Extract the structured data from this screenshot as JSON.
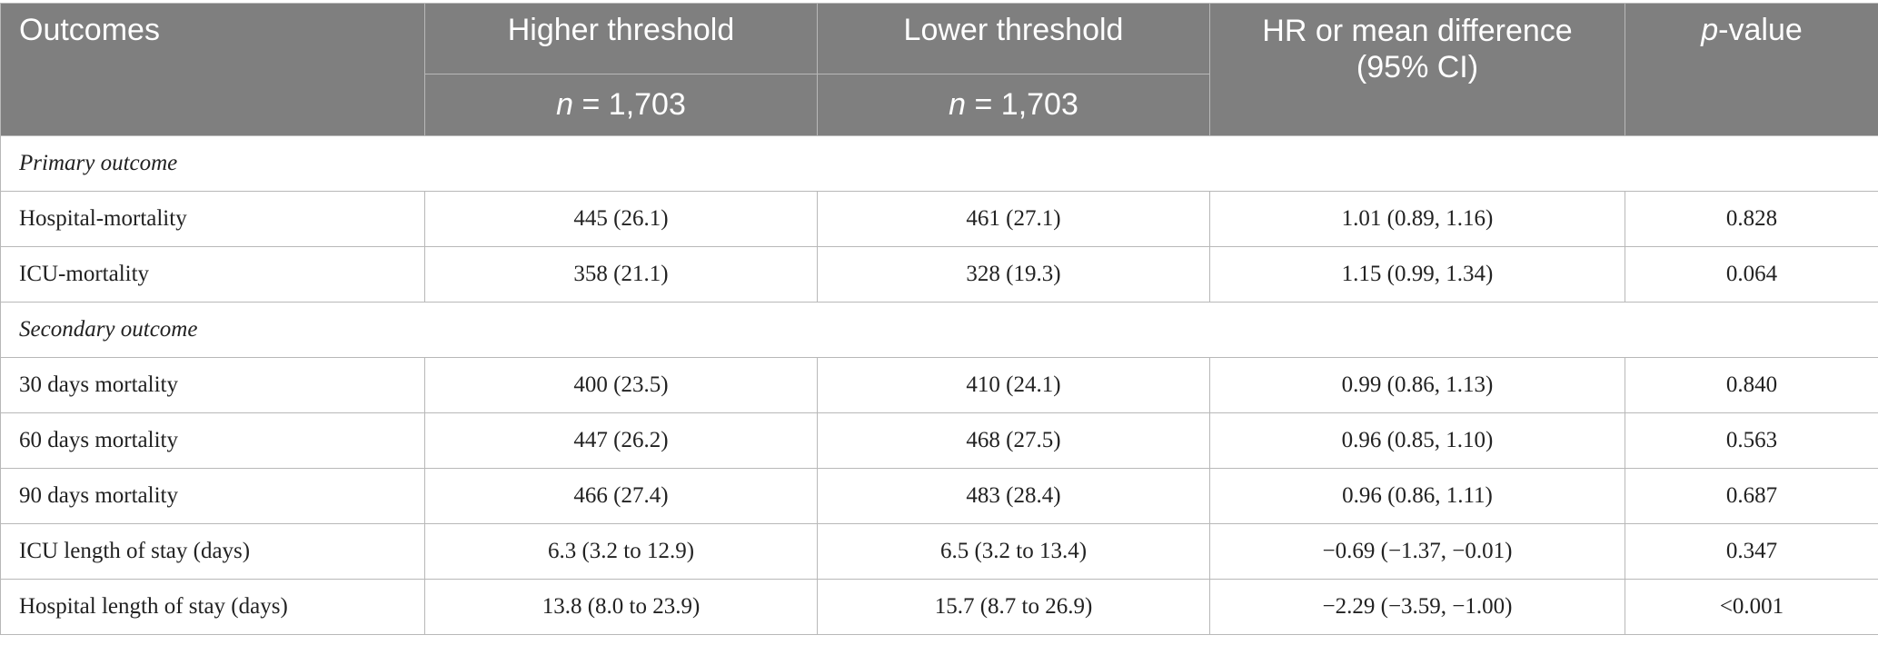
{
  "header": {
    "col_outcomes": "Outcomes",
    "col_higher": "Higher threshold",
    "col_higher_n_var": "n",
    "col_higher_n_val": " = 1,703",
    "col_lower": "Lower threshold",
    "col_lower_n_var": "n",
    "col_lower_n_val": " = 1,703",
    "col_hr_line1": "HR or mean difference",
    "col_hr_line2": "(95% CI)",
    "col_p_var": "p",
    "col_p_rest": "-value"
  },
  "sections": [
    {
      "title": "Primary outcome",
      "rows": [
        {
          "outcome": "Hospital-mortality",
          "higher": "445 (26.1)",
          "lower": "461 (27.1)",
          "hr": "1.01 (0.89, 1.16)",
          "p": "0.828"
        },
        {
          "outcome": "ICU-mortality",
          "higher": "358 (21.1)",
          "lower": "328 (19.3)",
          "hr": "1.15 (0.99, 1.34)",
          "p": "0.064"
        }
      ]
    },
    {
      "title": "Secondary outcome",
      "rows": [
        {
          "outcome": "30 days mortality",
          "higher": "400 (23.5)",
          "lower": "410 (24.1)",
          "hr": "0.99 (0.86, 1.13)",
          "p": "0.840"
        },
        {
          "outcome": "60 days mortality",
          "higher": "447 (26.2)",
          "lower": "468 (27.5)",
          "hr": "0.96 (0.85, 1.10)",
          "p": "0.563"
        },
        {
          "outcome": "90 days mortality",
          "higher": "466 (27.4)",
          "lower": "483 (28.4)",
          "hr": "0.96 (0.86, 1.11)",
          "p": "0.687"
        },
        {
          "outcome": "ICU length of stay (days)",
          "higher": "6.3 (3.2 to 12.9)",
          "lower": "6.5 (3.2 to 13.4)",
          "hr": "−0.69 (−1.37, −0.01)",
          "p": "0.347"
        },
        {
          "outcome": "Hospital length of stay (days)",
          "higher": "13.8 (8.0 to 23.9)",
          "lower": "15.7 (8.7 to 26.9)",
          "hr": "−2.29 (−3.59, −1.00)",
          "p": "<0.001"
        }
      ]
    }
  ],
  "colors": {
    "header_bg": "#7f7f7f",
    "header_text": "#ffffff",
    "grid": "#b8b8b8"
  }
}
